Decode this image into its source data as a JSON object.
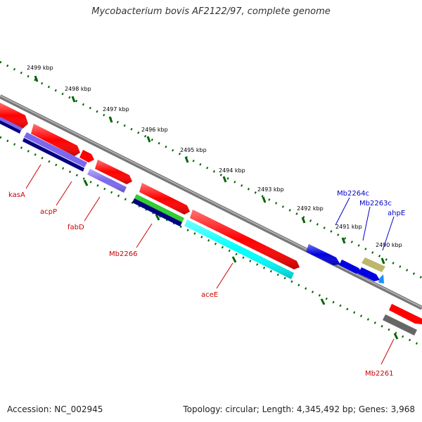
{
  "title": "Mycobacterium bovis AF2122/97, complete genome",
  "footer": {
    "accession": "Accession: NC_002945",
    "topology": "Topology: circular; Length: 4,345,492 bp; Genes: 3,968"
  },
  "scale_labels": [
    "2499 kbp",
    "2498 kbp",
    "2497 kbp",
    "2496 kbp",
    "2495 kbp",
    "2494 kbp",
    "2493 kbp",
    "2492 kbp",
    "2491 kbp",
    "2490 kbp"
  ],
  "gene_labels_top": [
    "Mb2264c",
    "Mb2263c",
    "ahpE"
  ],
  "gene_labels_bottom": [
    "kasA",
    "acpP",
    "fabD",
    "Mb2266",
    "aceE",
    "Mb2261"
  ],
  "colors": {
    "cds": "#ff0000",
    "gene_blue": "#0000e0",
    "gene_navy": "#000080",
    "gene_lavender": "#7b68ee",
    "gene_cyan": "#00ffff",
    "gene_green": "#32cd32",
    "gene_khaki": "#bdb76b",
    "gene_gray": "#666666",
    "label_red": "#cc0000",
    "label_blue": "#0000cc",
    "tick_green": "#006400",
    "backbone": "#808080"
  }
}
